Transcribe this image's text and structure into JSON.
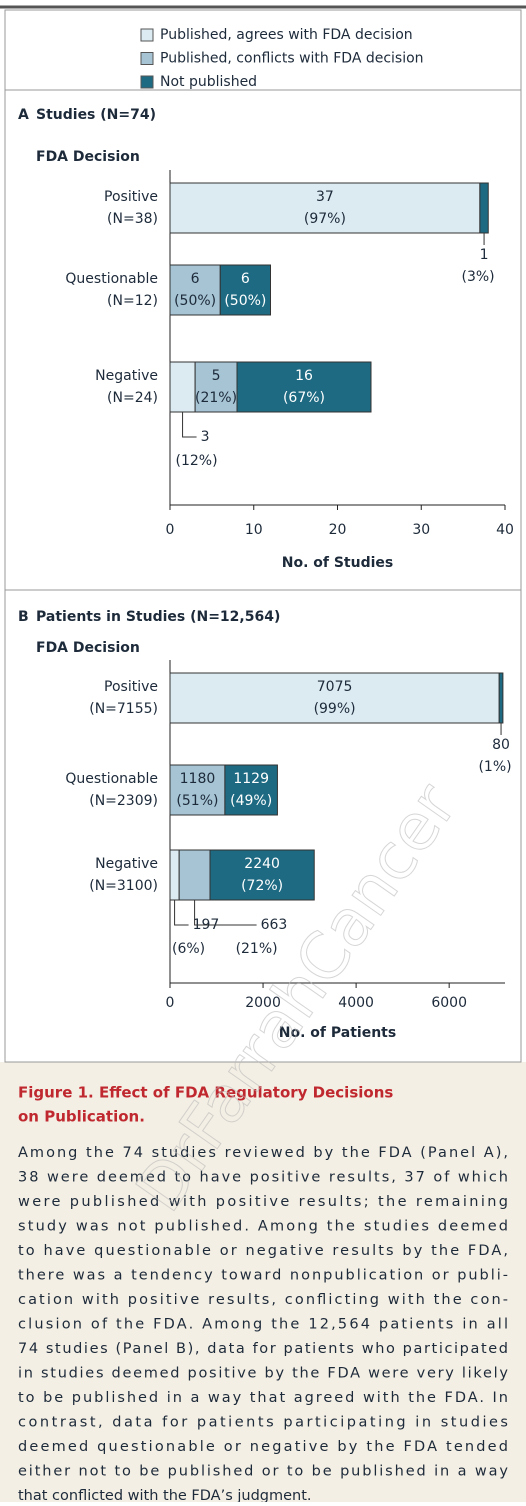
{
  "chart_data": [
    {
      "type": "stacked-hbar",
      "title": "Studies (N=74)",
      "panel": "A",
      "subtitle": "FDA Decision",
      "categories": [
        "Positive",
        "Questionable",
        "Negative"
      ],
      "category_sublabels": [
        "(N=38)",
        "(N=12)",
        "(N=24)"
      ],
      "series": [
        {
          "name": "Published, agrees with FDA decision",
          "color": "#dcebf2",
          "values": [
            37,
            0,
            3
          ],
          "percent_labels": [
            "(97%)",
            null,
            "(12%)"
          ]
        },
        {
          "name": "Published, conflicts with FDA decision",
          "color": "#a6c4d4",
          "values": [
            0,
            6,
            5
          ],
          "percent_labels": [
            null,
            "(50%)",
            "(21%)"
          ]
        },
        {
          "name": "Not published",
          "color": "#1d6a82",
          "values": [
            1,
            6,
            16
          ],
          "percent_labels": [
            "(3%)",
            "(50%)",
            "(67%)"
          ]
        }
      ],
      "xlim": [
        0,
        40
      ],
      "xticks": [
        0,
        10,
        20,
        30,
        40
      ],
      "xlabel": "No. of Studies"
    },
    {
      "type": "stacked-hbar",
      "title": "Patients in Studies (N=12,564)",
      "panel": "B",
      "subtitle": "FDA Decision",
      "categories": [
        "Positive",
        "Questionable",
        "Negative"
      ],
      "category_sublabels": [
        "(N=7155)",
        "(N=2309)",
        "(N=3100)"
      ],
      "series": [
        {
          "name": "Published, agrees with FDA decision",
          "color": "#dcebf2",
          "values": [
            7075,
            0,
            197
          ],
          "percent_labels": [
            "(99%)",
            null,
            "(6%)"
          ]
        },
        {
          "name": "Published, conflicts with FDA decision",
          "color": "#a6c4d4",
          "values": [
            0,
            1180,
            663
          ],
          "percent_labels": [
            null,
            "(51%)",
            "(21%)"
          ]
        },
        {
          "name": "Not published",
          "color": "#1d6a82",
          "values": [
            80,
            1129,
            2240
          ],
          "percent_labels": [
            "(1%)",
            "(49%)",
            "(72%)"
          ]
        }
      ],
      "xlim": [
        0,
        7200
      ],
      "xticks": [
        0,
        2000,
        4000,
        6000
      ],
      "xlabel": "No. of Patients"
    }
  ],
  "caption": {
    "title_lines": [
      "Figure 1. Effect of FDA Regulatory Decisions",
      "on Publication."
    ],
    "lines": [
      "Among the 74 studies reviewed by the FDA (Panel A),",
      "38 were deemed to have positive results, 37 of which",
      "were published with positive results; the remaining",
      "study was not published. Among the studies deemed",
      "to have questionable or negative results by the FDA,",
      "there was a tendency toward nonpublication or publi-",
      "cation with positive results, conflicting with the con-",
      "clusion of the FDA. Among the 12,564 patients in all",
      "74 studies (Panel B), data for patients who participated",
      "in studies deemed positive by the FDA were very likely",
      "to be published in a way that agreed with the FDA. In",
      "contrast, data for patients participating in studies",
      "deemed questionable or negative by the FDA tended",
      "either not to be published or to be published in a way",
      "that conflicted with the FDA’s judgment."
    ]
  },
  "watermark": "DrFarrahCancer"
}
